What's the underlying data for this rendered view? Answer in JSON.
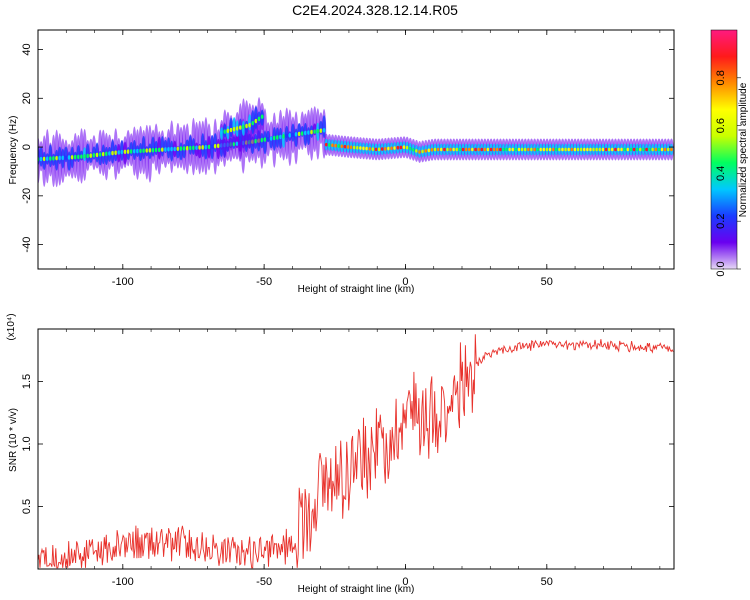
{
  "title": "C2E4.2024.328.12.14.R05",
  "chart_data": [
    {
      "type": "heatmap",
      "xlabel": "Height of straight line (km)",
      "ylabel": "Frequency (Hz)",
      "xlim": [
        -130,
        95
      ],
      "ylim": [
        -50,
        48
      ],
      "xticks": [
        "-100",
        "-50",
        "0",
        "50"
      ],
      "yticks": [
        "-40",
        "-20",
        "0",
        "20",
        "40"
      ],
      "colorbar": {
        "label": "Normalized spectral amplitude",
        "range": [
          0,
          1
        ],
        "ticks": [
          "0.0",
          "0.2",
          "0.4",
          "0.6",
          "0.8"
        ],
        "colors": [
          "#e6d8f5",
          "#6a00f0",
          "#1a3cff",
          "#00c8ff",
          "#00ff60",
          "#c8ff00",
          "#ffff00",
          "#ff8a00",
          "#ff1a1a",
          "#ff1a80"
        ]
      },
      "traces": [
        {
          "x": [
            -130,
            -115,
            -100,
            -85,
            -70,
            -55,
            -40,
            -28
          ],
          "y": [
            -5,
            -4,
            -2,
            -1,
            0,
            2,
            5,
            7
          ],
          "amplitude": 0.4
        },
        {
          "x": [
            -65,
            -55,
            -50
          ],
          "y": [
            6,
            9,
            13
          ],
          "amplitude": 0.4
        },
        {
          "x": [
            -28,
            -20,
            -10,
            0,
            5,
            10,
            15,
            95
          ],
          "y": [
            1,
            0,
            -1,
            0,
            -2,
            -1,
            -1,
            -1
          ],
          "amplitude": 0.9
        }
      ]
    },
    {
      "type": "line",
      "xlabel": "Height of straight line (km)",
      "ylabel": "SNR (10 * v/v)",
      "scale_label": "(x10⁴)",
      "xlim": [
        -130,
        95
      ],
      "ylim": [
        0,
        1.92
      ],
      "xticks": [
        "-100",
        "-50",
        "0",
        "50"
      ],
      "yticks": [
        "0.5",
        "1.0",
        "1.5"
      ],
      "line_color": "#e8312b",
      "envelope": {
        "x": [
          -130,
          -115,
          -100,
          -85,
          -70,
          -55,
          -45,
          -40,
          -35,
          -30,
          -25,
          -20,
          -15,
          -10,
          -5,
          0,
          5,
          10,
          15,
          20,
          25,
          30,
          40,
          50,
          60,
          70,
          80,
          95
        ],
        "y": [
          0.08,
          0.12,
          0.18,
          0.22,
          0.17,
          0.12,
          0.15,
          0.22,
          0.45,
          0.65,
          0.75,
          0.82,
          0.9,
          0.95,
          1.08,
          1.25,
          1.28,
          1.25,
          1.35,
          1.45,
          1.62,
          1.72,
          1.78,
          1.8,
          1.78,
          1.8,
          1.78,
          1.77
        ]
      }
    }
  ]
}
